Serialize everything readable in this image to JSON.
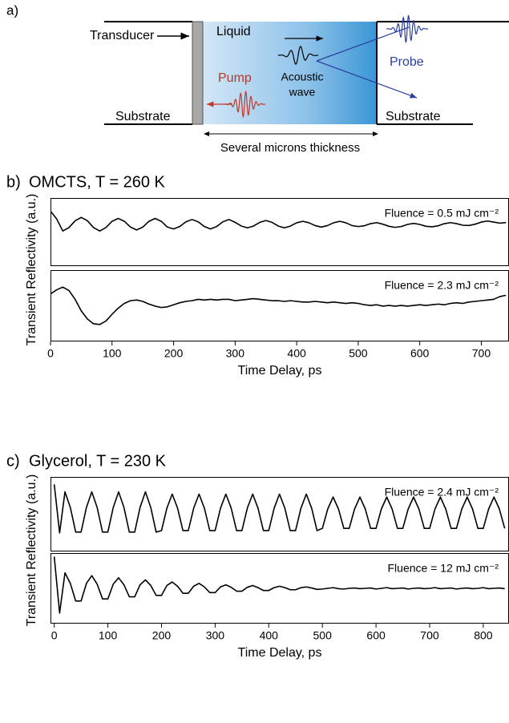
{
  "diagram": {
    "label": "a)",
    "transducer": "Transducer",
    "liquid": "Liquid",
    "pump": "Pump",
    "acoustic_wave": [
      "Acoustic",
      "wave"
    ],
    "probe": "Probe",
    "substrate_left": "Substrate",
    "substrate_right": "Substrate",
    "thickness": "Several microns thickness"
  },
  "chart_data": [
    {
      "type": "line",
      "panel": "b)",
      "title": "OMCTS, T = 260 K",
      "ylabel": "Transient Reflectivity (a.u.)",
      "annotation": "Fluence = 0.5 mJ cm⁻²",
      "color": "#000000",
      "xlim": [
        0,
        745
      ],
      "ylim": [
        -0.3,
        1
      ],
      "x": [
        0,
        10,
        20,
        30,
        40,
        50,
        60,
        70,
        80,
        90,
        100,
        110,
        120,
        130,
        140,
        150,
        160,
        170,
        180,
        190,
        200,
        210,
        220,
        230,
        240,
        250,
        260,
        270,
        280,
        290,
        300,
        310,
        320,
        330,
        340,
        350,
        360,
        370,
        380,
        390,
        400,
        410,
        420,
        430,
        440,
        450,
        460,
        470,
        480,
        490,
        500,
        510,
        520,
        530,
        540,
        550,
        560,
        570,
        580,
        590,
        600,
        610,
        620,
        630,
        640,
        650,
        660,
        670,
        680,
        690,
        700,
        710,
        720,
        730,
        740
      ],
      "values": [
        0.75,
        0.6,
        0.37,
        0.435,
        0.565,
        0.63,
        0.565,
        0.435,
        0.37,
        0.435,
        0.555,
        0.61,
        0.555,
        0.445,
        0.39,
        0.445,
        0.555,
        0.61,
        0.555,
        0.445,
        0.41,
        0.455,
        0.545,
        0.59,
        0.545,
        0.455,
        0.41,
        0.455,
        0.545,
        0.59,
        0.535,
        0.465,
        0.43,
        0.465,
        0.535,
        0.57,
        0.535,
        0.465,
        0.43,
        0.465,
        0.527,
        0.555,
        0.527,
        0.473,
        0.445,
        0.473,
        0.527,
        0.555,
        0.527,
        0.473,
        0.455,
        0.47,
        0.51,
        0.53,
        0.5,
        0.46,
        0.44,
        0.455,
        0.495,
        0.515,
        0.495,
        0.46,
        0.45,
        0.47,
        0.51,
        0.53,
        0.51,
        0.48,
        0.475,
        0.5,
        0.54,
        0.56,
        0.54,
        0.52,
        0.53
      ]
    },
    {
      "type": "line",
      "annotation": "Fluence = 2.3 mJ cm⁻²",
      "xlabel": "Time Delay, ps",
      "color": "#000000",
      "xlim": [
        0,
        745
      ],
      "ylim": [
        0,
        1.05
      ],
      "xticks": [
        0,
        100,
        200,
        300,
        400,
        500,
        600,
        700
      ],
      "x": [
        0,
        10,
        20,
        30,
        40,
        50,
        60,
        70,
        80,
        90,
        100,
        110,
        120,
        130,
        140,
        150,
        160,
        170,
        180,
        190,
        200,
        210,
        220,
        230,
        240,
        250,
        260,
        270,
        280,
        290,
        300,
        310,
        320,
        330,
        340,
        350,
        360,
        370,
        380,
        390,
        400,
        410,
        420,
        430,
        440,
        450,
        460,
        470,
        480,
        490,
        500,
        510,
        520,
        530,
        540,
        550,
        560,
        570,
        580,
        590,
        600,
        610,
        620,
        630,
        640,
        650,
        660,
        670,
        680,
        690,
        700,
        710,
        720,
        730,
        740
      ],
      "values": [
        0.7,
        0.76,
        0.8,
        0.75,
        0.62,
        0.45,
        0.33,
        0.26,
        0.25,
        0.3,
        0.4,
        0.49,
        0.56,
        0.6,
        0.61,
        0.59,
        0.55,
        0.52,
        0.5,
        0.51,
        0.54,
        0.57,
        0.59,
        0.6,
        0.62,
        0.61,
        0.62,
        0.61,
        0.62,
        0.62,
        0.6,
        0.61,
        0.62,
        0.63,
        0.62,
        0.61,
        0.6,
        0.6,
        0.59,
        0.6,
        0.59,
        0.58,
        0.58,
        0.59,
        0.58,
        0.57,
        0.58,
        0.57,
        0.56,
        0.57,
        0.56,
        0.54,
        0.53,
        0.54,
        0.52,
        0.53,
        0.52,
        0.53,
        0.52,
        0.53,
        0.54,
        0.53,
        0.54,
        0.55,
        0.54,
        0.56,
        0.57,
        0.56,
        0.58,
        0.59,
        0.6,
        0.61,
        0.62,
        0.66,
        0.68
      ]
    },
    {
      "type": "line",
      "panel": "c)",
      "title": "Glycerol, T = 230 K",
      "ylabel": "Transient Reflectivity (a.u.)",
      "annotation": "Fluence = 2.4 mJ cm⁻²",
      "color": "#000000",
      "xlim": [
        -7,
        848
      ],
      "ylim": [
        0,
        1
      ],
      "x": [
        0,
        10,
        20,
        30,
        40,
        50,
        60,
        70,
        80,
        90,
        100,
        110,
        120,
        130,
        140,
        150,
        160,
        170,
        180,
        190,
        200,
        210,
        220,
        230,
        240,
        250,
        260,
        270,
        280,
        290,
        300,
        310,
        320,
        330,
        340,
        350,
        360,
        370,
        380,
        390,
        400,
        410,
        420,
        430,
        440,
        450,
        460,
        470,
        480,
        490,
        500,
        510,
        520,
        530,
        540,
        550,
        560,
        570,
        580,
        590,
        600,
        610,
        620,
        630,
        640,
        650,
        660,
        670,
        680,
        690,
        700,
        710,
        720,
        730,
        740,
        750,
        760,
        770,
        780,
        790,
        800,
        810,
        820,
        830,
        840
      ],
      "values": [
        0.9,
        0.25,
        0.8,
        0.59,
        0.26,
        0.26,
        0.59,
        0.8,
        0.59,
        0.26,
        0.26,
        0.59,
        0.8,
        0.59,
        0.26,
        0.26,
        0.59,
        0.8,
        0.59,
        0.26,
        0.28,
        0.58,
        0.77,
        0.58,
        0.28,
        0.28,
        0.58,
        0.77,
        0.58,
        0.28,
        0.28,
        0.58,
        0.77,
        0.58,
        0.28,
        0.28,
        0.58,
        0.77,
        0.58,
        0.28,
        0.28,
        0.58,
        0.77,
        0.58,
        0.28,
        0.28,
        0.58,
        0.77,
        0.58,
        0.28,
        0.31,
        0.57,
        0.73,
        0.57,
        0.31,
        0.31,
        0.57,
        0.73,
        0.57,
        0.31,
        0.31,
        0.57,
        0.73,
        0.57,
        0.31,
        0.31,
        0.57,
        0.73,
        0.57,
        0.31,
        0.31,
        0.57,
        0.73,
        0.57,
        0.31,
        0.31,
        0.57,
        0.73,
        0.57,
        0.31,
        0.31,
        0.57,
        0.73,
        0.57,
        0.31
      ]
    },
    {
      "type": "line",
      "annotation": "Fluence = 12 mJ cm⁻²",
      "xlabel": "Time Delay, ps",
      "color": "#000000",
      "xlim": [
        -7,
        848
      ],
      "ylim": [
        0,
        1
      ],
      "xticks": [
        0,
        100,
        200,
        300,
        400,
        500,
        600,
        700,
        800
      ],
      "x": [
        0,
        10,
        20,
        30,
        40,
        50,
        60,
        70,
        80,
        90,
        100,
        110,
        120,
        130,
        140,
        150,
        160,
        170,
        180,
        190,
        200,
        210,
        220,
        230,
        240,
        250,
        260,
        270,
        280,
        290,
        300,
        310,
        320,
        330,
        340,
        350,
        360,
        370,
        380,
        390,
        400,
        410,
        420,
        430,
        440,
        450,
        460,
        470,
        480,
        490,
        500,
        510,
        520,
        530,
        540,
        550,
        560,
        570,
        580,
        590,
        600,
        610,
        620,
        630,
        640,
        650,
        660,
        670,
        680,
        690,
        700,
        710,
        720,
        730,
        740,
        750,
        760,
        770,
        780,
        790,
        800,
        810,
        820,
        830,
        840
      ],
      "values": [
        0.95,
        0.15,
        0.72,
        0.57,
        0.32,
        0.32,
        0.57,
        0.68,
        0.56,
        0.35,
        0.35,
        0.56,
        0.65,
        0.55,
        0.38,
        0.38,
        0.55,
        0.62,
        0.54,
        0.4,
        0.4,
        0.54,
        0.59,
        0.53,
        0.43,
        0.43,
        0.53,
        0.57,
        0.52,
        0.44,
        0.44,
        0.52,
        0.55,
        0.515,
        0.46,
        0.46,
        0.515,
        0.54,
        0.51,
        0.47,
        0.47,
        0.51,
        0.53,
        0.51,
        0.48,
        0.48,
        0.51,
        0.52,
        0.505,
        0.485,
        0.49,
        0.5,
        0.51,
        0.495,
        0.49,
        0.5,
        0.505,
        0.495,
        0.5,
        0.505,
        0.49,
        0.5,
        0.51,
        0.495,
        0.5,
        0.505,
        0.49,
        0.5,
        0.505,
        0.495,
        0.5,
        0.51,
        0.495,
        0.5,
        0.505,
        0.49,
        0.5,
        0.505,
        0.495,
        0.5,
        0.51,
        0.495,
        0.5,
        0.505,
        0.495
      ]
    }
  ]
}
